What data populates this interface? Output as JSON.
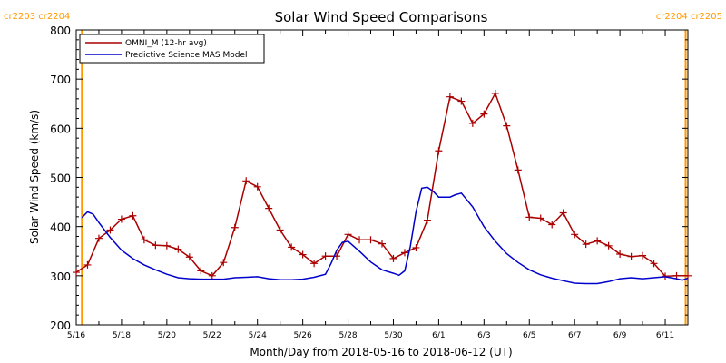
{
  "chart_data": {
    "type": "line",
    "title": "Solar Wind Speed Comparisons",
    "xlabel": "Month/Day from 2018-05-16 to 2018-06-12 (UT)",
    "ylabel": "Solar Wind Speed (km/s)",
    "xlim": [
      "2018-05-16",
      "2018-06-12"
    ],
    "ylim": [
      200,
      800
    ],
    "y_ticks": [
      200,
      300,
      400,
      500,
      600,
      700,
      800
    ],
    "x_ticks": [
      "5/16",
      "5/18",
      "5/20",
      "5/22",
      "5/24",
      "5/26",
      "5/28",
      "5/30",
      "6/1",
      "6/3",
      "6/5",
      "6/7",
      "6/9",
      "6/11"
    ],
    "x_tick_dates": [
      "2018-05-16",
      "2018-05-18",
      "2018-05-20",
      "2018-05-22",
      "2018-05-24",
      "2018-05-26",
      "2018-05-28",
      "2018-05-30",
      "2018-06-01",
      "2018-06-03",
      "2018-06-05",
      "2018-06-07",
      "2018-06-09",
      "2018-06-11"
    ],
    "grid": false,
    "legend_position": "top-left",
    "rotation_markers": [
      {
        "date": "2018-05-16T06:00",
        "label": "cr2203 cr2204",
        "color": "#ff9900"
      },
      {
        "date": "2018-06-11T21:36",
        "label": "cr2204 cr2205",
        "color": "#ff9900"
      }
    ],
    "series": [
      {
        "name": "OMNI_M (12-hr avg)",
        "color": "#aa0000",
        "marker": "plus",
        "x": [
          "2018-05-16T00:00",
          "2018-05-16T12:00",
          "2018-05-17T00:00",
          "2018-05-17T12:00",
          "2018-05-18T00:00",
          "2018-05-18T12:00",
          "2018-05-19T00:00",
          "2018-05-19T12:00",
          "2018-05-20T00:00",
          "2018-05-20T12:00",
          "2018-05-21T00:00",
          "2018-05-21T12:00",
          "2018-05-22T00:00",
          "2018-05-22T12:00",
          "2018-05-23T00:00",
          "2018-05-23T12:00",
          "2018-05-24T00:00",
          "2018-05-24T12:00",
          "2018-05-25T00:00",
          "2018-05-25T12:00",
          "2018-05-26T00:00",
          "2018-05-26T12:00",
          "2018-05-27T00:00",
          "2018-05-27T12:00",
          "2018-05-28T00:00",
          "2018-05-28T12:00",
          "2018-05-29T00:00",
          "2018-05-29T12:00",
          "2018-05-30T00:00",
          "2018-05-30T12:00",
          "2018-05-31T00:00",
          "2018-05-31T12:00",
          "2018-06-01T00:00",
          "2018-06-01T12:00",
          "2018-06-02T00:00",
          "2018-06-02T12:00",
          "2018-06-03T00:00",
          "2018-06-03T12:00",
          "2018-06-04T00:00",
          "2018-06-04T12:00",
          "2018-06-05T00:00",
          "2018-06-05T12:00",
          "2018-06-06T00:00",
          "2018-06-06T12:00",
          "2018-06-07T00:00",
          "2018-06-07T12:00",
          "2018-06-08T00:00",
          "2018-06-08T12:00",
          "2018-06-09T00:00",
          "2018-06-09T12:00",
          "2018-06-10T00:00",
          "2018-06-10T12:00",
          "2018-06-11T00:00",
          "2018-06-11T12:00",
          "2018-06-12T00:00"
        ],
        "values": [
          307,
          322,
          376,
          393,
          415,
          422,
          373,
          362,
          361,
          354,
          338,
          310,
          300,
          327,
          398,
          493,
          481,
          437,
          393,
          358,
          343,
          325,
          340,
          340,
          384,
          373,
          373,
          365,
          335,
          347,
          357,
          413,
          554,
          664,
          655,
          610,
          629,
          671,
          605,
          515,
          419,
          417,
          404,
          428,
          384,
          364,
          371,
          361,
          344,
          339,
          341,
          325,
          299,
          300,
          300
        ]
      },
      {
        "name": "Predictive Science MAS Model",
        "color": "#0000cc",
        "x": [
          "2018-05-16T06:00",
          "2018-05-16T12:00",
          "2018-05-16T18:00",
          "2018-05-17T00:00",
          "2018-05-17T12:00",
          "2018-05-18T00:00",
          "2018-05-18T12:00",
          "2018-05-19T00:00",
          "2018-05-19T12:00",
          "2018-05-20T00:00",
          "2018-05-20T12:00",
          "2018-05-21T00:00",
          "2018-05-21T12:00",
          "2018-05-22T00:00",
          "2018-05-22T12:00",
          "2018-05-23T00:00",
          "2018-05-23T12:00",
          "2018-05-24T00:00",
          "2018-05-24T12:00",
          "2018-05-25T00:00",
          "2018-05-25T12:00",
          "2018-05-26T00:00",
          "2018-05-26T12:00",
          "2018-05-27T00:00",
          "2018-05-27T06:00",
          "2018-05-27T12:00",
          "2018-05-27T18:00",
          "2018-05-28T00:00",
          "2018-05-28T12:00",
          "2018-05-29T00:00",
          "2018-05-29T12:00",
          "2018-05-30T00:00",
          "2018-05-30T06:00",
          "2018-05-30T12:00",
          "2018-05-30T18:00",
          "2018-05-31T00:00",
          "2018-05-31T06:00",
          "2018-05-31T12:00",
          "2018-05-31T18:00",
          "2018-06-01T00:00",
          "2018-06-01T12:00",
          "2018-06-01T18:00",
          "2018-06-02T00:00",
          "2018-06-02T12:00",
          "2018-06-03T00:00",
          "2018-06-03T12:00",
          "2018-06-04T00:00",
          "2018-06-04T12:00",
          "2018-06-05T00:00",
          "2018-06-05T12:00",
          "2018-06-06T00:00",
          "2018-06-06T12:00",
          "2018-06-07T00:00",
          "2018-06-07T12:00",
          "2018-06-08T00:00",
          "2018-06-08T12:00",
          "2018-06-09T00:00",
          "2018-06-09T12:00",
          "2018-06-10T00:00",
          "2018-06-10T12:00",
          "2018-06-11T00:00",
          "2018-06-11T12:00",
          "2018-06-11T18:00",
          "2018-06-12T00:00"
        ],
        "values": [
          418,
          430,
          425,
          408,
          378,
          352,
          335,
          322,
          312,
          303,
          296,
          294,
          293,
          293,
          293,
          296,
          297,
          298,
          294,
          292,
          292,
          293,
          297,
          303,
          325,
          352,
          368,
          370,
          350,
          328,
          312,
          305,
          301,
          310,
          360,
          430,
          478,
          480,
          472,
          460,
          460,
          465,
          468,
          440,
          400,
          370,
          345,
          327,
          312,
          302,
          295,
          290,
          285,
          284,
          284,
          288,
          294,
          296,
          294,
          296,
          298,
          294,
          291,
          295
        ]
      }
    ]
  }
}
